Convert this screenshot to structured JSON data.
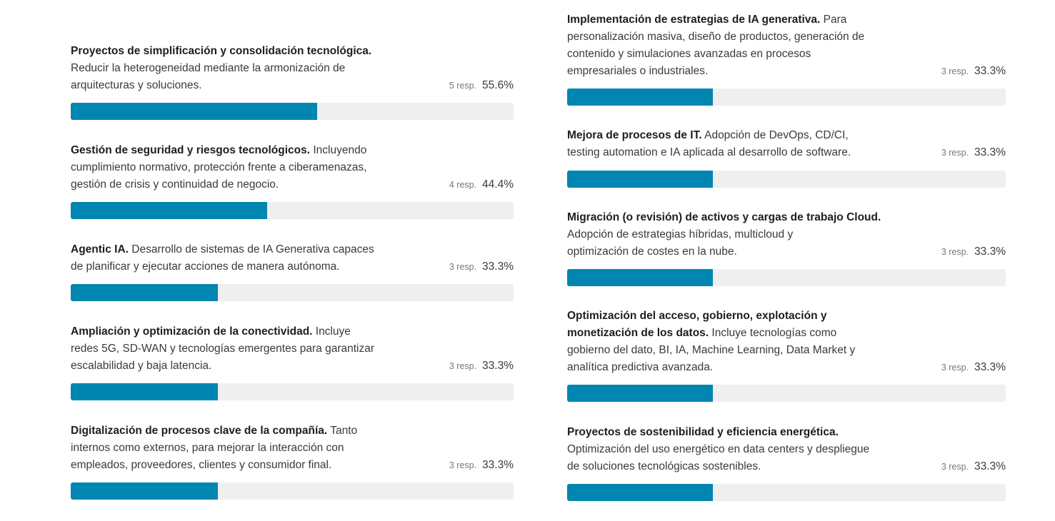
{
  "colors": {
    "accent": "#0086b0",
    "track": "#efefef"
  },
  "left": [
    {
      "title": "Proyectos de simplificación y consolidación tecnológica.",
      "lines": [
        "Reducir la heterogeneidad mediante la armonización de",
        "arquitecturas y soluciones."
      ],
      "responses": "5 resp.",
      "percent": "55.6%",
      "value": 55.6
    },
    {
      "title": "Gestión de seguridad y riesgos tecnológicos.",
      "lines": [
        " Incluyendo",
        "cumplimiento normativo, protección frente a ciberamenazas,",
        "gestión de crisis y continuidad de negocio."
      ],
      "responses": "4 resp.",
      "percent": "44.4%",
      "value": 44.4
    },
    {
      "title": "Agentic IA.",
      "lines": [
        " Desarrollo de sistemas de IA Generativa capaces",
        "de planificar y ejecutar acciones de manera autónoma."
      ],
      "responses": "3 resp.",
      "percent": "33.3%",
      "value": 33.3
    },
    {
      "title": "Ampliación y optimización de la conectividad.",
      "lines": [
        " Incluye",
        "redes 5G, SD-WAN y tecnologías emergentes para garantizar",
        "escalabilidad y baja latencia."
      ],
      "responses": "3 resp.",
      "percent": "33.3%",
      "value": 33.3
    },
    {
      "title": "Digitalización de procesos clave de la compañía.",
      "lines": [
        " Tanto",
        "internos como externos, para mejorar la interacción con",
        "empleados, proveedores, clientes y consumidor final."
      ],
      "responses": "3 resp.",
      "percent": "33.3%",
      "value": 33.3
    }
  ],
  "right": [
    {
      "title": "Implementación de estrategias de IA generativa.",
      "lines": [
        " Para",
        "personalización masiva, diseño de productos, generación de",
        "contenido y simulaciones avanzadas en procesos",
        "empresariales o industriales."
      ],
      "responses": "3 resp.",
      "percent": "33.3%",
      "value": 33.3
    },
    {
      "title": "Mejora de procesos de IT.",
      "lines": [
        " Adopción de DevOps, CD/CI,",
        "testing automation e IA aplicada al desarrollo de software."
      ],
      "responses": "3 resp.",
      "percent": "33.3%",
      "value": 33.3
    },
    {
      "title": "Migración (o revisión) de activos y cargas de trabajo Cloud.",
      "lines": [
        " Adopción de estrategias híbridas, multicloud y",
        "optimización de costes en la nube."
      ],
      "responses": "3 resp.",
      "percent": "33.3%",
      "value": 33.3
    },
    {
      "title": "Optimización del acceso, gobierno, explotación y monetización de los datos.",
      "lines": [
        " Incluye tecnologías como",
        "gobierno del dato, BI, IA, Machine Learning, Data Market y",
        "analítica predictiva avanzada."
      ],
      "responses": "3 resp.",
      "percent": "33.3%",
      "value": 33.3
    },
    {
      "title": "Proyectos de sostenibilidad y eficiencia energética.",
      "lines": [
        "Optimización del uso energético en data centers y despliegue",
        "de soluciones tecnológicas sostenibles."
      ],
      "responses": "3 resp.",
      "percent": "33.3%",
      "value": 33.3
    }
  ]
}
